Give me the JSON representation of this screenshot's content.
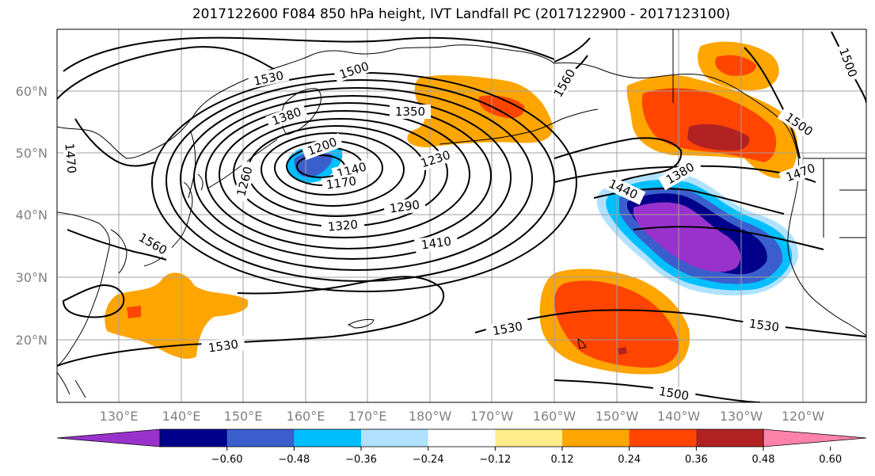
{
  "title": "2017122600 F084 850 hPa height, IVT Landfall PC (2017122900 - 2017123100)",
  "lat_labels": [
    "60°N",
    "50°N",
    "40°N",
    "30°N",
    "20°N"
  ],
  "lon_labels": [
    "130°E",
    "140°E",
    "150°E",
    "160°E",
    "170°E",
    "180°W",
    "170°W",
    "160°W",
    "150°W",
    "140°W",
    "130°W",
    "120°W"
  ],
  "contour_labels": [
    "1530",
    "1500",
    "1380",
    "1350",
    "1200",
    "1140",
    "1170",
    "1230",
    "1260",
    "1290",
    "1320",
    "1410",
    "1470",
    "1440",
    "1380",
    "1500",
    "1470",
    "1530",
    "1530",
    "1530",
    "1500",
    "1500",
    "1560",
    "1560"
  ],
  "colorbar": {
    "ticks": [
      "−0.60",
      "−0.48",
      "−0.36",
      "−0.24",
      "−0.12",
      "0.12",
      "0.24",
      "0.36",
      "0.48",
      "0.60"
    ],
    "colors": [
      "#9932cc",
      "#00008b",
      "#3a5fcd",
      "#00bfff",
      "#b0e2ff",
      "#ffffff",
      "#ffec8b",
      "#ffa500",
      "#ff4500",
      "#b22222",
      "#ff82ab"
    ]
  }
}
